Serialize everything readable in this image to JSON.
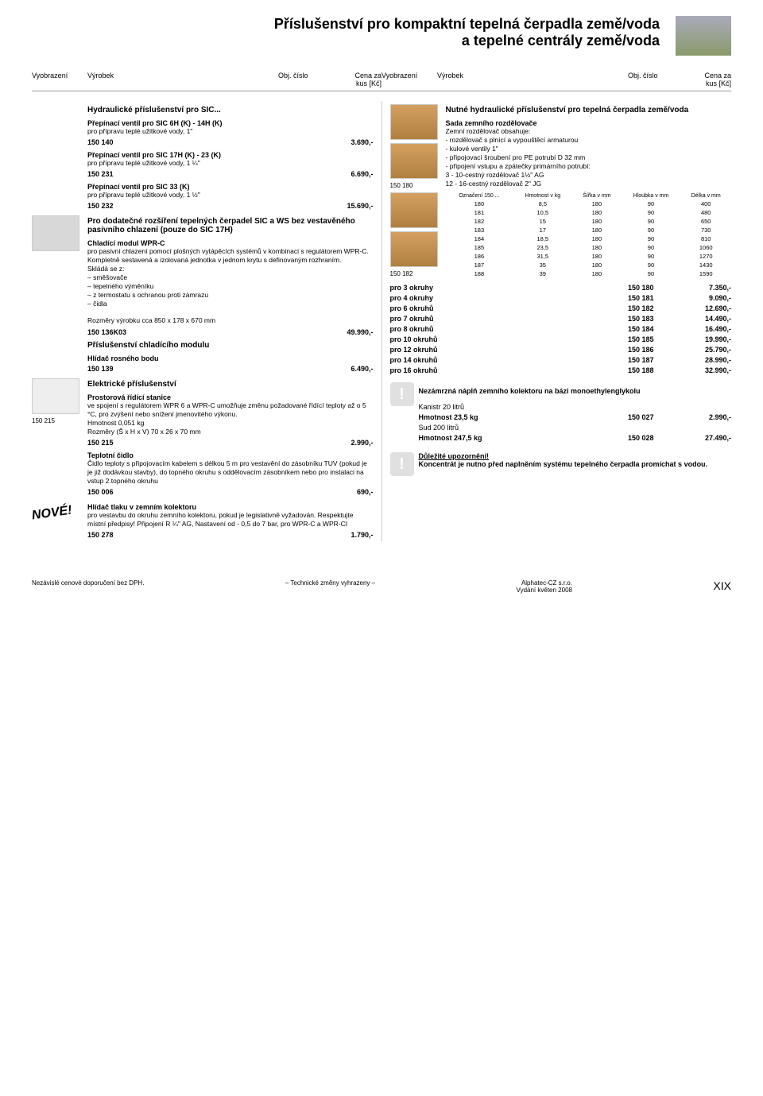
{
  "page_title_l1": "Příslušenství pro kompaktní tepelná čerpadla země/voda",
  "page_title_l2": "a tepelné centrály země/voda",
  "headers": {
    "vyobrazeni": "Vyobrazení",
    "vyrobek": "Výrobek",
    "obj_cislo": "Obj. číslo",
    "cena_za": "Cena za",
    "kus": "kus [Kč]"
  },
  "left": {
    "hydr_title": "Hydraulické příslušenství pro SIC...",
    "v1_title": "Přepínací ventil pro SIC 6H (K) - 14H (K)",
    "v1_desc": "pro přípravu teplé užitkové vody, 1\"",
    "v1_code": "150 140",
    "v1_price": "3.690,-",
    "v2_title": "Přepínací ventil pro SIC 17H (K) - 23 (K)",
    "v2_desc": "pro přípravu teplé užitkové vody, 1 ¼\"",
    "v2_code": "150 231",
    "v2_price": "6.690,-",
    "v3_title": "Přepínací ventil pro SIC 33 (K)",
    "v3_desc": "pro přípravu teplé užitkové vody, 1 ½\"",
    "v3_code": "150 232",
    "v3_price": "15.690,-",
    "ext_title": "Pro dodatečné rozšíření tepelných čerpadel SIC a WS bez vestavěného pasivního chlazení (pouze do SIC 17H)",
    "wprc_title": "Chladící modul WPR-C",
    "wprc_desc1": "pro pasivní chlazení pomocí plošných vytápěcích systémů v kombinaci s regulátorem WPR-C. Kompletně sestavená a izolovaná jednotka v jednom krytu s definovaným rozhraním.",
    "wprc_sklada": "Skládá se z:",
    "wprc_b1": "– směšovače",
    "wprc_b2": "– tepelného výměníku",
    "wprc_b3": "– z termostatu s ochranou proti zámrazu",
    "wprc_b4": "– čidla",
    "wprc_dim": "Rozměry výrobku cca 850 x 178 x 670 mm",
    "wprc_code": "150 136K03",
    "wprc_price": "49.990,-",
    "chlad_title": "Příslušenství chladícího modulu",
    "hlidac_title": "Hlídač rosného bodu",
    "hlidac_code": "150 139",
    "hlidac_price": "6.490,-",
    "elek_title": "Elektrické příslušenství",
    "prost_title": "Prostorová řídící stanice",
    "prost_desc": "ve spojení s regulátorem WPR 6 a WPR-C umožňuje změnu požadované řídící teploty až o 5 °C, pro zvýšení nebo snížení jmenovitého výkonu.",
    "prost_hm": "Hmotnost 0,051 kg",
    "prost_dim": "Rozměry (Š x H x V) 70 x 26 x 70 mm",
    "prost_code": "150 215",
    "prost_price": "2.990,-",
    "prost_img_label": "150 215",
    "tepl_title": "Teplotní čidlo",
    "tepl_desc": "Čidlo teploty s připojovacím kabelem s délkou 5 m pro vestavění do zásobníku TUV (pokud je je již dodávkou stavby), do topného okruhu s oddělovacím zásobníkem nebo pro instalaci na vstup 2.topného okruhu",
    "tepl_code": "150 006",
    "tepl_price": "690,-",
    "nove_label": "NOVÉ!",
    "hlidac2_title": "Hlídač tlaku v zemním kolektoru",
    "hlidac2_desc": "pro vestavbu do okruhu zemního kolektoru, pokud je legislativně vyžadován. Respektujte místní předpisy! Připojení R ¼\" AG, Nastavení od - 0,5 do 7 bar, pro WPR-C a WPR-CI",
    "hlidac2_code": "150 278",
    "hlidac2_price": "1.790,-"
  },
  "right": {
    "nutne_title": "Nutné hydraulické příslušenství pro tepelná čerpadla země/voda",
    "sada_title": "Sada zemního rozdělovače",
    "sada_d1": "Zemní rozdělovač obsahuje:",
    "sada_d2": "- rozdělovač s plnící a vypouštěcí armaturou",
    "sada_d3": "- kulové ventily 1\"",
    "sada_d4": "- připojovací šroubení pro PE potrubí D 32 mm",
    "sada_d5": "- připojení vstupu a zpátečky primárního potrubí:",
    "sada_d6": "  3 - 10-cestný rozdělovač 1½\" AG",
    "sada_d7": "  12 - 16-cestný rozdělovač 2\" JG",
    "img1_label": "150 180",
    "img2_label": "150 182",
    "table": {
      "h1": "Označení 150 ...",
      "h2": "Hmotnost v kg",
      "h3": "Šířka v mm",
      "h4": "Hloubka v mm",
      "h5": "Délka v mm",
      "rows": [
        [
          "180",
          "8,5",
          "180",
          "90",
          "400"
        ],
        [
          "181",
          "10,5",
          "180",
          "90",
          "480"
        ],
        [
          "182",
          "15",
          "180",
          "90",
          "650"
        ],
        [
          "183",
          "17",
          "180",
          "90",
          "730"
        ],
        [
          "184",
          "18,5",
          "180",
          "90",
          "810"
        ],
        [
          "185",
          "23,5",
          "180",
          "90",
          "1060"
        ],
        [
          "186",
          "31,5",
          "180",
          "90",
          "1270"
        ],
        [
          "187",
          "35",
          "180",
          "90",
          "1430"
        ],
        [
          "188",
          "39",
          "180",
          "90",
          "1590"
        ]
      ]
    },
    "circuits": [
      {
        "label": "pro 3 okruhy",
        "code": "150 180",
        "price": "7.350,-"
      },
      {
        "label": "pro 4 okruhy",
        "code": "150 181",
        "price": "9.090,-"
      },
      {
        "label": "pro 6 okruhů",
        "code": "150 182",
        "price": "12.690,-"
      },
      {
        "label": "pro 7 okruhů",
        "code": "150 183",
        "price": "14.490,-"
      },
      {
        "label": "pro 8 okruhů",
        "code": "150 184",
        "price": "16.490,-"
      },
      {
        "label": "pro 10 okruhů",
        "code": "150 185",
        "price": "19.990,-"
      },
      {
        "label": "pro 12 okruhů",
        "code": "150 186",
        "price": "25.790,-"
      },
      {
        "label": "pro 14 okruhů",
        "code": "150 187",
        "price": "28.990,-"
      },
      {
        "label": "pro 16 okruhů",
        "code": "150 188",
        "price": "32.990,-"
      }
    ],
    "nez_title": "Nezámrzná náplň zemního kolektoru na bázi monoethylenglykolu",
    "kan_l1": "Kanistr 20 litrů",
    "kan_l2": "Hmotnost 23,5 kg",
    "kan_code": "150 027",
    "kan_price": "2.990,-",
    "sud_l1": "Sud 200 litrů",
    "sud_l2": "Hmotnost 247,5 kg",
    "sud_code": "150 028",
    "sud_price": "27.490,-",
    "warn_title": "Důležité upozornění!",
    "warn_text": "Koncentrát je nutno před naplněním systému tepelného čerpadla promíchat s vodou."
  },
  "footer": {
    "left": "Nezávislé cenové doporučení bez DPH.",
    "mid": "– Technické změny vyhrazeny –",
    "r1": "Alphatec-CZ s.r.o.",
    "r2": "Vydání květen 2008",
    "pnum": "XIX"
  }
}
